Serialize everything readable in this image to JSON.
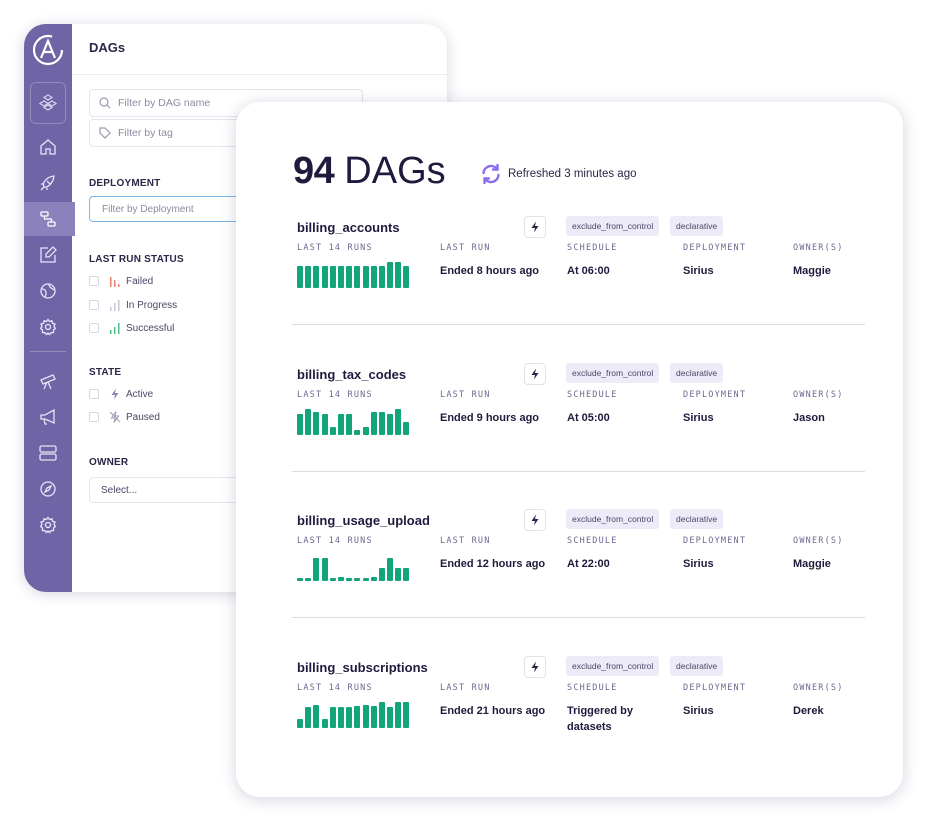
{
  "sidebar_panel": {
    "title": "DAGs",
    "dag_name_placeholder": "Filter by DAG name",
    "tag_placeholder": "Filter by tag",
    "deployment": {
      "label": "DEPLOYMENT",
      "placeholder": "Filter by Deployment"
    },
    "last_run_status": {
      "label": "LAST RUN STATUS",
      "options": [
        "Failed",
        "In Progress",
        "Successful"
      ]
    },
    "state": {
      "label": "STATE",
      "options": [
        "Active",
        "Paused"
      ]
    },
    "owner": {
      "label": "OWNER",
      "placeholder": "Select..."
    }
  },
  "rail_icons": [
    "astro-logo",
    "workspace-icon",
    "home-icon",
    "rocket-icon",
    "dags-icon",
    "edit-icon",
    "globe-icon",
    "settings-icon",
    "telescope-icon",
    "megaphone-icon",
    "server-icon",
    "compass-icon",
    "settings-icon"
  ],
  "header": {
    "count": "94",
    "count_label": "DAGs",
    "refreshed": "Refreshed 3 minutes ago"
  },
  "columns": {
    "runs": "LAST 14 RUNS",
    "last_run": "LAST RUN",
    "schedule": "SCHEDULE",
    "deployment": "DEPLOYMENT",
    "owners": "OWNER(S)"
  },
  "colors": {
    "rail": "#6e64a6",
    "bar": "#12a57a",
    "tag_bg": "#ecebf7",
    "refresh": "#8b6cf0"
  },
  "dags": [
    {
      "name": "billing_accounts",
      "tags": [
        "exclude_from_control",
        "declarative"
      ],
      "runs": [
        0.85,
        0.85,
        0.85,
        0.85,
        0.85,
        0.85,
        0.85,
        0.85,
        0.85,
        0.85,
        0.85,
        1.0,
        1.0,
        0.85
      ],
      "last_run": "Ended 8 hours ago",
      "schedule": "At 06:00",
      "deployment": "Sirius",
      "owner": "Maggie"
    },
    {
      "name": "billing_tax_codes",
      "tags": [
        "exclude_from_control",
        "declarative"
      ],
      "runs": [
        0.8,
        1.0,
        0.9,
        0.8,
        0.3,
        0.8,
        0.8,
        0.2,
        0.3,
        0.9,
        0.9,
        0.8,
        1.0,
        0.5
      ],
      "last_run": "Ended 9 hours ago",
      "schedule": "At 05:00",
      "deployment": "Sirius",
      "owner": "Jason"
    },
    {
      "name": "billing_usage_upload",
      "tags": [
        "exclude_from_control",
        "declarative"
      ],
      "runs": [
        0.1,
        0.1,
        0.9,
        0.9,
        0.1,
        0.15,
        0.1,
        0.1,
        0.1,
        0.15,
        0.5,
        0.9,
        0.5,
        0.5
      ],
      "last_run": "Ended 12 hours ago",
      "schedule": "At 22:00",
      "deployment": "Sirius",
      "owner": "Maggie"
    },
    {
      "name": "billing_subscriptions",
      "tags": [
        "exclude_from_control",
        "declarative"
      ],
      "runs": [
        0.35,
        0.8,
        0.9,
        0.35,
        0.8,
        0.8,
        0.8,
        0.85,
        0.9,
        0.85,
        1.0,
        0.8,
        1.0,
        1.0
      ],
      "last_run": "Ended 21 hours ago",
      "schedule": "Triggered by\ndatasets",
      "deployment": "Sirius",
      "owner": "Derek"
    }
  ]
}
